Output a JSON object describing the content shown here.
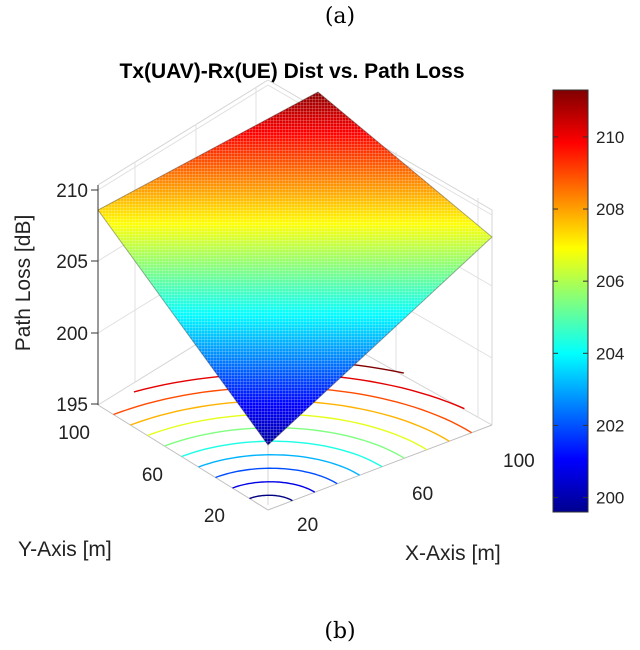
{
  "captions": {
    "top": "(a)",
    "bottom": "(b)"
  },
  "chart_data": {
    "type": "surface3d",
    "title": "Tx(UAV)-Rx(UE) Dist vs. Path Loss",
    "xlabel": "X-Axis [m]",
    "ylabel": "Y-Axis [m]",
    "zlabel": "Path Loss [dB]",
    "x_ticks": [
      "20",
      "60",
      "100"
    ],
    "y_ticks": [
      "20",
      "60",
      "100"
    ],
    "z_ticks": [
      "195",
      "200",
      "205",
      "210"
    ],
    "xlim": [
      0,
      110
    ],
    "ylim": [
      0,
      110
    ],
    "zlim": [
      195,
      212
    ],
    "surface_corners": {
      "x0_y0": 199.6,
      "x110_y0": 207.5,
      "x0_y110": 208.1,
      "x110_y110": 211.3
    },
    "contour_levels": 11,
    "colorbar": {
      "ticks": [
        "200",
        "202",
        "204",
        "206",
        "208",
        "210"
      ],
      "range": [
        199.6,
        211.3
      ],
      "colormap": "jet"
    }
  }
}
